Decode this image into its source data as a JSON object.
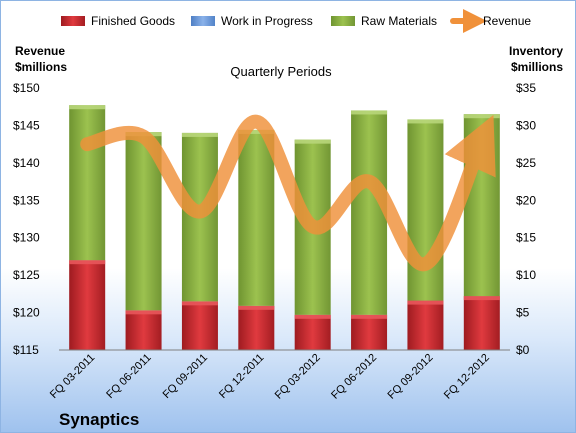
{
  "chart_data": {
    "type": "bar",
    "subtitle": "Quarterly Periods",
    "company": "Synaptics",
    "left_axis_label": [
      "Revenue",
      "$millions"
    ],
    "right_axis_label": [
      "Inventory",
      "$millions"
    ],
    "categories": [
      "FQ 03-2011",
      "FQ 06-2011",
      "FQ 09-2011",
      "FQ 12-2011",
      "FQ 03-2012",
      "FQ 06-2012",
      "FQ 09-2012",
      "FQ 12-2012"
    ],
    "series": [
      {
        "name": "Finished Goods",
        "axis": "right",
        "stacked": true,
        "color": "#c0272d",
        "values": [
          12.0,
          5.3,
          6.5,
          5.9,
          4.7,
          4.7,
          6.6,
          7.2
        ]
      },
      {
        "name": "Work in Progress",
        "axis": "right",
        "stacked": true,
        "color": "#6f9bd8",
        "values": [
          0.0,
          0.0,
          0.0,
          0.0,
          0.0,
          0.0,
          0.0,
          0.0
        ]
      },
      {
        "name": "Raw Materials",
        "axis": "right",
        "stacked": true,
        "color": "#8db33e",
        "values": [
          20.7,
          23.8,
          22.5,
          23.5,
          23.4,
          27.3,
          24.2,
          24.3
        ]
      },
      {
        "name": "Revenue",
        "axis": "left",
        "type": "line",
        "color": "#f0913a",
        "values": [
          142.5,
          143.5,
          133.5,
          145.5,
          131.5,
          137.5,
          126.5,
          143.0
        ]
      }
    ],
    "left_ylim": [
      115,
      150
    ],
    "left_ticks": [
      "$115",
      "$120",
      "$125",
      "$130",
      "$135",
      "$140",
      "$145",
      "$150"
    ],
    "right_ylim": [
      0,
      35
    ],
    "right_ticks": [
      "$0",
      "$5",
      "$10",
      "$15",
      "$20",
      "$25",
      "$30",
      "$35"
    ],
    "legend_position": "top",
    "grid": false
  }
}
